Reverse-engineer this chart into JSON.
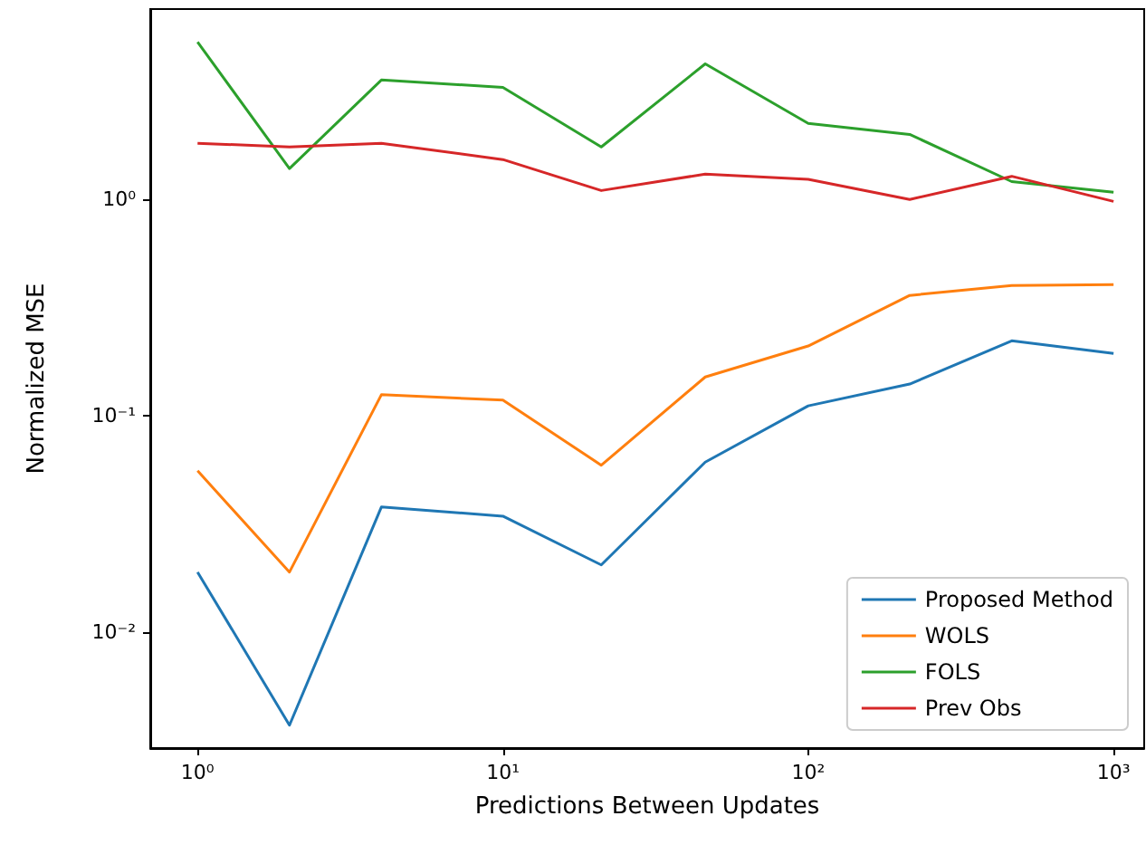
{
  "chart_data": {
    "type": "line",
    "xlabel": "Predictions Between Updates",
    "ylabel": "Normalized MSE",
    "log": "xy",
    "grid": false,
    "legend": "bottom right",
    "marker": "none",
    "line_style": "solid",
    "x": [
      1,
      2,
      4,
      10,
      21,
      46,
      100,
      215,
      464,
      1000
    ],
    "xlim": [
      0.7,
      1260
    ],
    "ylim": [
      0.0029,
      7.6
    ],
    "xticks": [
      {
        "value": 1,
        "label": "10⁰"
      },
      {
        "value": 10,
        "label": "10¹"
      },
      {
        "value": 100,
        "label": "10²"
      },
      {
        "value": 1000,
        "label": "10³"
      }
    ],
    "yticks": [
      {
        "value": 0.01,
        "label": "10⁻²"
      },
      {
        "value": 0.1,
        "label": "10⁻¹"
      },
      {
        "value": 1,
        "label": "10⁰"
      }
    ],
    "series": [
      {
        "name": "Proposed Method",
        "color": "#1f77b4",
        "values": [
          0.0189,
          0.0037,
          0.0378,
          0.0343,
          0.0204,
          0.061,
          0.111,
          0.14,
          0.222,
          0.194
        ]
      },
      {
        "name": "WOLS",
        "color": "#ff7f0e",
        "values": [
          0.0556,
          0.0189,
          0.125,
          0.118,
          0.059,
          0.151,
          0.21,
          0.36,
          0.4,
          0.404
        ]
      },
      {
        "name": "FOLS",
        "color": "#2ca02c",
        "values": [
          5.35,
          1.39,
          3.57,
          3.3,
          1.75,
          4.24,
          2.25,
          2.0,
          1.21,
          1.08
        ]
      },
      {
        "name": "Prev Obs",
        "color": "#d62728",
        "values": [
          1.82,
          1.75,
          1.82,
          1.53,
          1.1,
          1.31,
          1.24,
          1.0,
          1.28,
          0.98
        ]
      }
    ]
  }
}
